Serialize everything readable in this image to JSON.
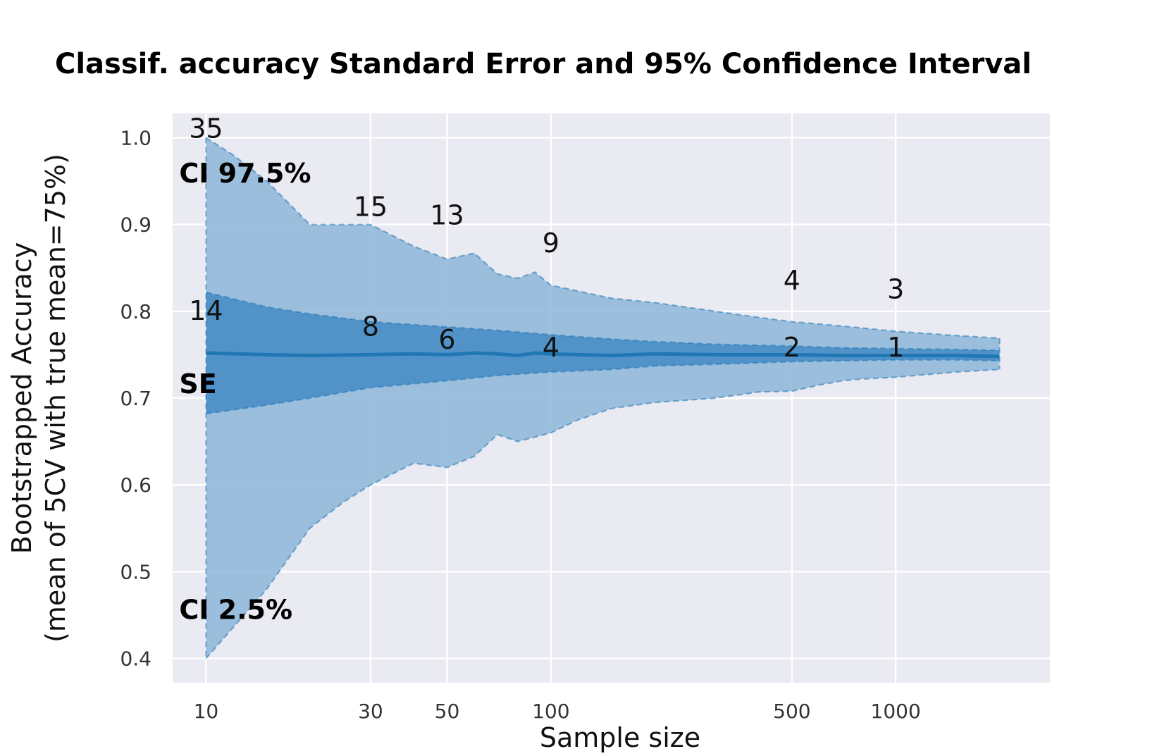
{
  "chart_data": {
    "type": "area",
    "title": "Classif. accuracy Standard Error and 95% Confidence Interval",
    "xlabel": "Sample size",
    "ylabel": "Bootstrapped Accuracy",
    "ylabel2": "(mean of 5CV with true mean=75%)",
    "x_scale": "log",
    "xlim": [
      8,
      2800
    ],
    "ylim": [
      0.372,
      1.028
    ],
    "x_ticks": [
      10,
      30,
      50,
      100,
      500,
      1000
    ],
    "x_tick_labels": [
      "10",
      "30",
      "50",
      "100",
      "500",
      "1000"
    ],
    "y_ticks": [
      0.4,
      0.5,
      0.6,
      0.7,
      0.8,
      0.9,
      1.0
    ],
    "y_tick_labels": [
      "0.4",
      "0.5",
      "0.6",
      "0.7",
      "0.8",
      "0.9",
      "1.0"
    ],
    "grid": true,
    "colors": {
      "background": "#eaeaf2",
      "grid": "#ffffff",
      "ci_fill": "#8db6d9",
      "se_fill": "#3e88c4",
      "mean_line": "#1f77b4"
    },
    "series": [
      {
        "role": "ci_upper",
        "x": [
          10,
          12,
          15,
          20,
          25,
          30,
          40,
          50,
          60,
          70,
          80,
          90,
          100,
          150,
          200,
          300,
          400,
          500,
          700,
          1000,
          1500,
          2000
        ],
        "values": [
          1.0,
          0.98,
          0.95,
          0.9,
          0.9,
          0.9,
          0.875,
          0.86,
          0.867,
          0.843,
          0.838,
          0.845,
          0.83,
          0.815,
          0.81,
          0.8,
          0.793,
          0.788,
          0.783,
          0.777,
          0.772,
          0.769
        ]
      },
      {
        "role": "se_upper",
        "x": [
          10,
          15,
          20,
          30,
          50,
          70,
          100,
          150,
          200,
          300,
          500,
          700,
          1000,
          1500,
          2000
        ],
        "values": [
          0.822,
          0.805,
          0.797,
          0.788,
          0.782,
          0.778,
          0.773,
          0.768,
          0.765,
          0.762,
          0.76,
          0.758,
          0.757,
          0.756,
          0.755
        ]
      },
      {
        "role": "mean",
        "x": [
          10,
          15,
          20,
          30,
          40,
          50,
          60,
          70,
          80,
          90,
          100,
          150,
          200,
          300,
          500,
          700,
          1000,
          1500,
          2000
        ],
        "values": [
          0.752,
          0.75,
          0.749,
          0.75,
          0.751,
          0.75,
          0.752,
          0.751,
          0.749,
          0.752,
          0.751,
          0.749,
          0.751,
          0.75,
          0.75,
          0.749,
          0.749,
          0.749,
          0.748
        ]
      },
      {
        "role": "se_lower",
        "x": [
          10,
          15,
          20,
          30,
          50,
          70,
          100,
          150,
          200,
          300,
          500,
          700,
          1000,
          1500,
          2000
        ],
        "values": [
          0.682,
          0.692,
          0.7,
          0.712,
          0.72,
          0.726,
          0.73,
          0.733,
          0.737,
          0.739,
          0.742,
          0.743,
          0.744,
          0.744,
          0.743
        ]
      },
      {
        "role": "ci_lower",
        "x": [
          10,
          15,
          20,
          25,
          30,
          40,
          50,
          60,
          70,
          80,
          90,
          100,
          120,
          150,
          200,
          300,
          400,
          500,
          600,
          700,
          800,
          1000,
          1500,
          2000
        ],
        "values": [
          0.4,
          0.48,
          0.55,
          0.58,
          0.6,
          0.625,
          0.62,
          0.633,
          0.658,
          0.65,
          0.655,
          0.66,
          0.675,
          0.688,
          0.695,
          0.7,
          0.707,
          0.708,
          0.715,
          0.72,
          0.722,
          0.724,
          0.73,
          0.733
        ]
      }
    ],
    "annotations": [
      {
        "text": "CI 97.5%",
        "x": 10,
        "y": 0.96,
        "bold": true
      },
      {
        "text": "SE",
        "x": 10,
        "y": 0.717,
        "bold": true
      },
      {
        "text": "CI 2.5%",
        "x": 10,
        "y": 0.457,
        "bold": true
      }
    ],
    "ci_width_labels": [
      {
        "text": "35",
        "x": 10,
        "y": 1.0
      },
      {
        "text": "15",
        "x": 30,
        "y": 0.91
      },
      {
        "text": "13",
        "x": 50,
        "y": 0.9
      },
      {
        "text": "9",
        "x": 100,
        "y": 0.868
      },
      {
        "text": "4",
        "x": 500,
        "y": 0.825
      },
      {
        "text": "3",
        "x": 1000,
        "y": 0.815
      }
    ],
    "se_width_labels": [
      {
        "text": "14",
        "x": 10,
        "y": 0.79
      },
      {
        "text": "8",
        "x": 30,
        "y": 0.772
      },
      {
        "text": "6",
        "x": 50,
        "y": 0.757
      },
      {
        "text": "4",
        "x": 100,
        "y": 0.748
      },
      {
        "text": "2",
        "x": 500,
        "y": 0.748
      },
      {
        "text": "1",
        "x": 1000,
        "y": 0.748
      }
    ]
  }
}
